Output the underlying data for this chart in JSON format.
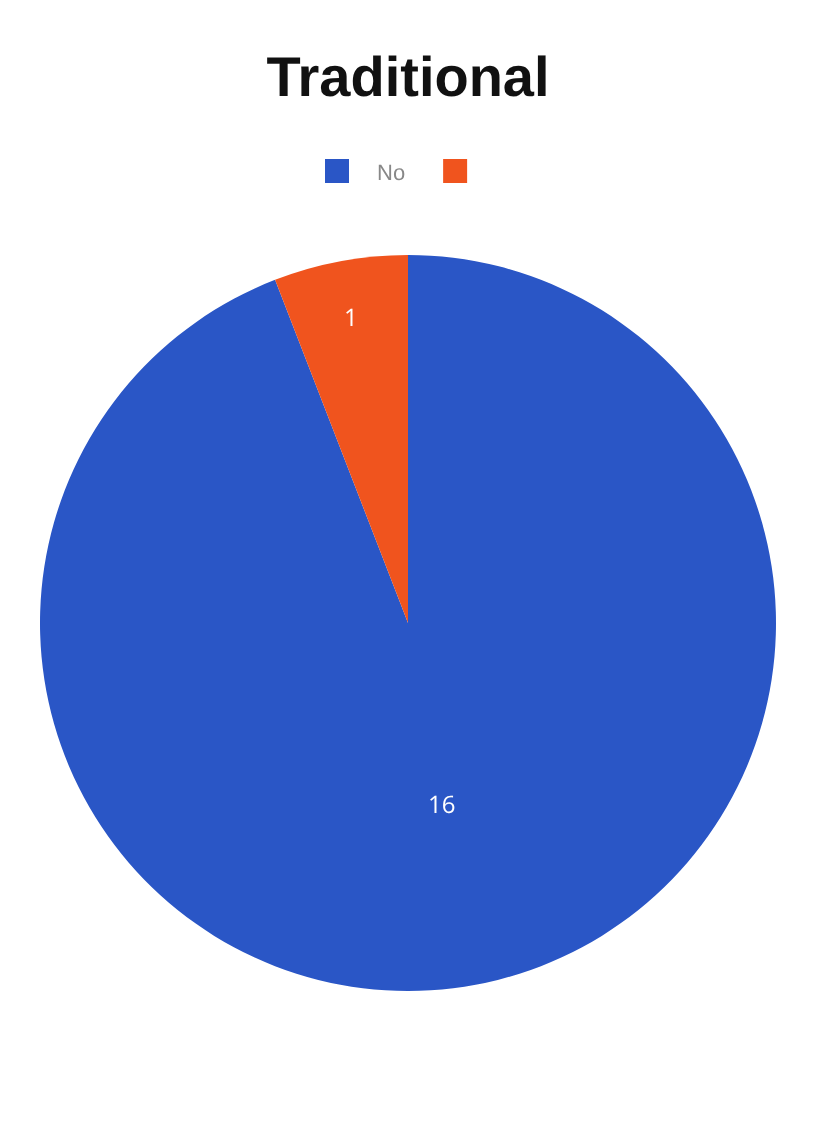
{
  "chart_data": {
    "type": "pie",
    "title": "Traditional",
    "categories": [
      "No",
      null
    ],
    "values": [
      16,
      1
    ],
    "colors": [
      "#2a56c6",
      "#f0541e"
    ],
    "data_labels": true,
    "legend": "top"
  }
}
